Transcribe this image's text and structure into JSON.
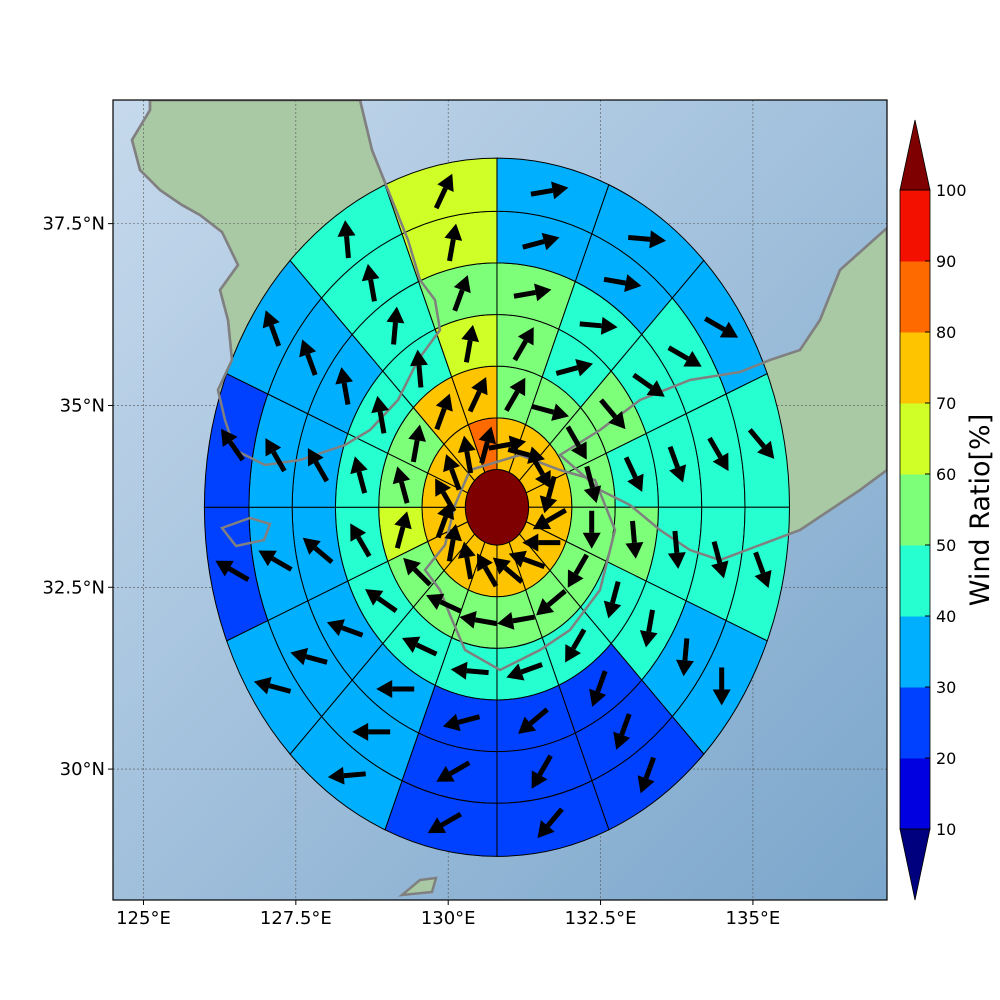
{
  "chart_data": {
    "type": "heatmap",
    "title": "",
    "projection": "polar sector grid over terrain map",
    "x_axis": {
      "range": [
        124.5,
        137.2
      ],
      "ticks": [
        125,
        127.5,
        130,
        132.5,
        135
      ],
      "tick_labels": [
        "125°E",
        "127.5°E",
        "130°E",
        "132.5°E",
        "135°E"
      ]
    },
    "y_axis": {
      "range": [
        28.2,
        39.2
      ],
      "ticks": [
        30,
        32.5,
        35,
        37.5
      ],
      "tick_labels": [
        "30°N",
        "32.5°N",
        "35°N",
        "37.5°N"
      ]
    },
    "grid": true,
    "center": {
      "lon": 130.8,
      "lat": 33.6
    },
    "ring_edges_deg": [
      0.52,
      1.23,
      1.94,
      2.65,
      3.36,
      4.07,
      4.8
    ],
    "sector_count": 16,
    "sector_start": "north, clockwise",
    "wind_ratio_by_ring": [
      [
        100
      ],
      [
        70,
        70,
        70,
        70,
        70,
        70,
        70,
        70,
        70,
        70,
        70,
        70,
        70,
        70,
        70,
        80
      ],
      [
        50,
        50,
        50,
        50,
        50,
        50,
        50,
        50,
        50,
        50,
        50,
        60,
        50,
        50,
        70,
        70
      ],
      [
        50,
        40,
        50,
        40,
        50,
        40,
        40,
        40,
        40,
        40,
        40,
        40,
        40,
        40,
        40,
        60
      ],
      [
        50,
        40,
        40,
        40,
        40,
        40,
        20,
        20,
        20,
        30,
        30,
        30,
        30,
        30,
        40,
        50
      ],
      [
        30,
        30,
        40,
        40,
        40,
        30,
        20,
        20,
        20,
        30,
        30,
        30,
        30,
        30,
        40,
        60
      ],
      [
        30,
        30,
        30,
        40,
        40,
        30,
        20,
        20,
        20,
        30,
        30,
        20,
        20,
        30,
        40,
        60
      ]
    ],
    "arrow_direction_by_ring_deg": [
      [],
      [
        80,
        105,
        150,
        195,
        240,
        270,
        290,
        310,
        330,
        350,
        10,
        20,
        330,
        340,
        350,
        15
      ],
      [
        30,
        105,
        150,
        165,
        180,
        210,
        230,
        260,
        280,
        295,
        315,
        15,
        345,
        10,
        20,
        25
      ],
      [
        30,
        75,
        140,
        155,
        175,
        195,
        210,
        250,
        275,
        295,
        305,
        330,
        345,
        350,
        355,
        10
      ],
      [
        80,
        95,
        125,
        160,
        175,
        190,
        200,
        230,
        255,
        270,
        290,
        310,
        330,
        350,
        5,
        20
      ],
      [
        75,
        100,
        120,
        150,
        165,
        185,
        200,
        210,
        240,
        270,
        285,
        300,
        330,
        340,
        350,
        10
      ],
      [
        80,
        95,
        120,
        140,
        160,
        180,
        200,
        220,
        240,
        265,
        285,
        300,
        325,
        340,
        355,
        25
      ]
    ],
    "colorbar": {
      "title": "Wind Ratio[%]",
      "ticks": [
        10,
        20,
        30,
        40,
        50,
        60,
        70,
        80,
        90,
        100
      ],
      "levels": [
        0,
        10,
        20,
        30,
        40,
        50,
        60,
        70,
        80,
        90,
        100,
        110
      ],
      "colors": [
        "#00007f",
        "#0000e0",
        "#0040ff",
        "#00b0ff",
        "#26ffcf",
        "#7dff7a",
        "#cfff26",
        "#ffc400",
        "#ff6a00",
        "#f41000",
        "#7f0000"
      ],
      "extend": "both"
    },
    "map_colors": {
      "ocean_light": "#c6d9ec",
      "ocean_dark": "#7ba6cb",
      "land": "#a9c9a4",
      "coastline": "#808080"
    }
  }
}
